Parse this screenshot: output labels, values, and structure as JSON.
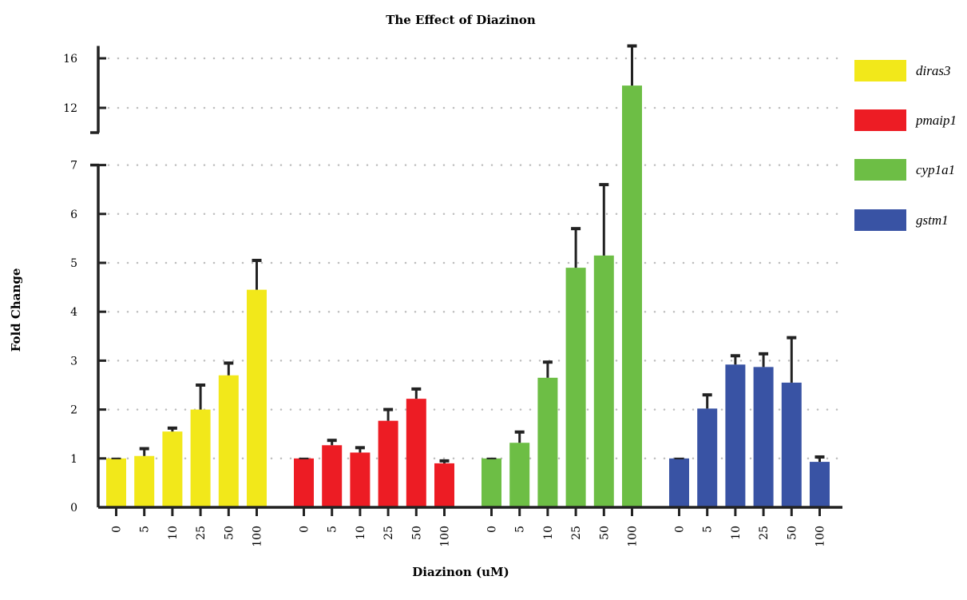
{
  "chart_data": {
    "type": "bar",
    "title": "The Effect of Diazinon",
    "xlabel": "Diazinon (uM)",
    "ylabel": "Fold Change",
    "categories": [
      "0",
      "5",
      "10",
      "25",
      "50",
      "100"
    ],
    "y_axis_broken": true,
    "ylim_lower": [
      0,
      7
    ],
    "ylim_upper": [
      10,
      17
    ],
    "y_ticks_lower": [
      "0",
      "1",
      "2",
      "3",
      "4",
      "5",
      "6",
      "7"
    ],
    "y_ticks_upper": [
      "12",
      "16"
    ],
    "grid": "dotted horizontal",
    "legend_position": "right",
    "series": [
      {
        "name": "diras3",
        "color": "#f2e81a",
        "values": [
          1.0,
          1.05,
          1.55,
          2.0,
          2.7,
          4.45
        ],
        "error": [
          0.0,
          0.15,
          0.07,
          0.5,
          0.25,
          0.6
        ]
      },
      {
        "name": "pmaip1",
        "color": "#ed1c24",
        "values": [
          1.0,
          1.27,
          1.12,
          1.77,
          2.22,
          0.9
        ],
        "error": [
          0.0,
          0.1,
          0.1,
          0.23,
          0.2,
          0.05
        ]
      },
      {
        "name": "cyp1a1",
        "color": "#6dbe45",
        "values": [
          1.0,
          1.32,
          2.65,
          4.9,
          5.15,
          13.8
        ],
        "error": [
          0.0,
          0.22,
          0.32,
          0.8,
          1.45,
          3.2
        ]
      },
      {
        "name": "gstm1",
        "color": "#3953a4",
        "values": [
          1.0,
          2.02,
          2.92,
          2.87,
          2.55,
          0.93
        ],
        "error": [
          0.0,
          0.28,
          0.18,
          0.27,
          0.92,
          0.1
        ]
      }
    ]
  }
}
